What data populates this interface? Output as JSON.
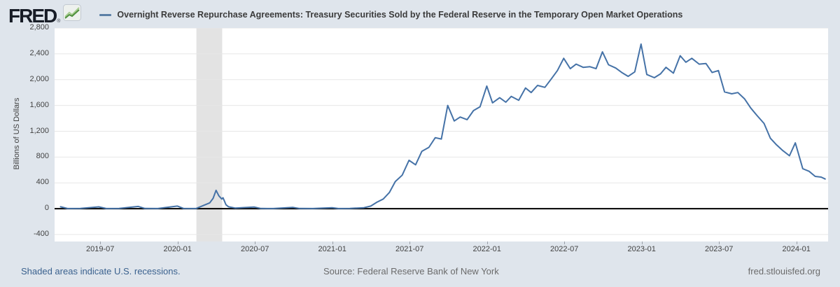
{
  "header": {
    "logo_text": "FRED",
    "logo_registered": "®",
    "legend_label": "Overnight Reverse Repurchase Agreements: Treasury Securities Sold by the Federal Reserve in the Temporary Open Market Operations"
  },
  "footer": {
    "recession_note": "Shaded areas indicate U.S. recessions.",
    "source": "Source: Federal Reserve Bank of New York",
    "site": "fred.stlouisfed.org"
  },
  "colors": {
    "page_background": "#dfe5ec",
    "plot_background": "#ffffff",
    "series_line": "#4572a7",
    "gridline": "#e7e7e7",
    "zero_line": "#000000",
    "recession_band": "#e3e3e3",
    "link_blue": "#3a618e"
  },
  "chart_data": {
    "type": "line",
    "title": "Overnight Reverse Repurchase Agreements: Treasury Securities Sold by the Federal Reserve in the Temporary Open Market Operations",
    "xlabel": "",
    "ylabel": "Billions of US Dollars",
    "ylim": [
      -400,
      2800
    ],
    "grid": true,
    "legend_position": "top",
    "x_domain": [
      "2019-03-15",
      "2024-03-15"
    ],
    "y_ticks": [
      {
        "value": 2800,
        "label": "2,800"
      },
      {
        "value": 2400,
        "label": "2,400"
      },
      {
        "value": 2000,
        "label": "2,000"
      },
      {
        "value": 1600,
        "label": "1,600"
      },
      {
        "value": 1200,
        "label": "1,200"
      },
      {
        "value": 800,
        "label": "800"
      },
      {
        "value": 400,
        "label": "400"
      },
      {
        "value": 0,
        "label": "0"
      },
      {
        "value": -400,
        "label": "-400"
      }
    ],
    "x_ticks": [
      {
        "date": "2019-07-01",
        "label": "2019-07"
      },
      {
        "date": "2020-01-01",
        "label": "2020-01"
      },
      {
        "date": "2020-07-01",
        "label": "2020-07"
      },
      {
        "date": "2021-01-01",
        "label": "2021-01"
      },
      {
        "date": "2021-07-01",
        "label": "2021-07"
      },
      {
        "date": "2022-01-01",
        "label": "2022-01"
      },
      {
        "date": "2022-07-01",
        "label": "2022-07"
      },
      {
        "date": "2023-01-01",
        "label": "2023-01"
      },
      {
        "date": "2023-07-01",
        "label": "2023-07"
      },
      {
        "date": "2024-01-01",
        "label": "2024-01"
      }
    ],
    "recession_bands": [
      {
        "start": "2020-02-15",
        "end": "2020-04-15"
      }
    ],
    "series": [
      {
        "name": "Overnight Reverse Repurchase Agreements: Treasury Securities Sold by the Federal Reserve in the Temporary Open Market Operations",
        "color": "#4572a7",
        "units": "Billions of US Dollars",
        "points": [
          [
            "2019-03-29",
            30
          ],
          [
            "2019-04-15",
            2
          ],
          [
            "2019-05-15",
            3
          ],
          [
            "2019-06-28",
            28
          ],
          [
            "2019-07-15",
            2
          ],
          [
            "2019-08-15",
            3
          ],
          [
            "2019-09-30",
            35
          ],
          [
            "2019-10-15",
            3
          ],
          [
            "2019-11-15",
            2
          ],
          [
            "2019-12-31",
            40
          ],
          [
            "2020-01-15",
            3
          ],
          [
            "2020-02-14",
            2
          ],
          [
            "2020-03-16",
            90
          ],
          [
            "2020-03-24",
            160
          ],
          [
            "2020-03-31",
            285
          ],
          [
            "2020-04-07",
            200
          ],
          [
            "2020-04-14",
            150
          ],
          [
            "2020-04-17",
            170
          ],
          [
            "2020-04-24",
            60
          ],
          [
            "2020-04-30",
            30
          ],
          [
            "2020-05-15",
            10
          ],
          [
            "2020-06-30",
            25
          ],
          [
            "2020-07-15",
            3
          ],
          [
            "2020-08-14",
            2
          ],
          [
            "2020-09-30",
            20
          ],
          [
            "2020-10-15",
            3
          ],
          [
            "2020-11-16",
            2
          ],
          [
            "2020-12-31",
            15
          ],
          [
            "2021-01-15",
            2
          ],
          [
            "2021-02-12",
            3
          ],
          [
            "2021-03-15",
            15
          ],
          [
            "2021-03-31",
            40
          ],
          [
            "2021-04-15",
            100
          ],
          [
            "2021-04-30",
            150
          ],
          [
            "2021-05-14",
            250
          ],
          [
            "2021-05-28",
            420
          ],
          [
            "2021-06-14",
            520
          ],
          [
            "2021-06-30",
            750
          ],
          [
            "2021-07-15",
            680
          ],
          [
            "2021-07-30",
            890
          ],
          [
            "2021-08-16",
            950
          ],
          [
            "2021-08-31",
            1100
          ],
          [
            "2021-09-15",
            1080
          ],
          [
            "2021-09-30",
            1600
          ],
          [
            "2021-10-15",
            1360
          ],
          [
            "2021-10-29",
            1420
          ],
          [
            "2021-11-15",
            1380
          ],
          [
            "2021-11-30",
            1520
          ],
          [
            "2021-12-15",
            1580
          ],
          [
            "2021-12-31",
            1900
          ],
          [
            "2022-01-14",
            1640
          ],
          [
            "2022-01-31",
            1720
          ],
          [
            "2022-02-15",
            1650
          ],
          [
            "2022-02-28",
            1740
          ],
          [
            "2022-03-15",
            1680
          ],
          [
            "2022-03-31",
            1870
          ],
          [
            "2022-04-14",
            1800
          ],
          [
            "2022-04-29",
            1910
          ],
          [
            "2022-05-16",
            1880
          ],
          [
            "2022-05-31",
            2010
          ],
          [
            "2022-06-15",
            2140
          ],
          [
            "2022-06-30",
            2330
          ],
          [
            "2022-07-15",
            2170
          ],
          [
            "2022-07-29",
            2240
          ],
          [
            "2022-08-15",
            2190
          ],
          [
            "2022-08-31",
            2200
          ],
          [
            "2022-09-15",
            2170
          ],
          [
            "2022-09-30",
            2430
          ],
          [
            "2022-10-14",
            2230
          ],
          [
            "2022-10-31",
            2180
          ],
          [
            "2022-11-15",
            2110
          ],
          [
            "2022-11-30",
            2050
          ],
          [
            "2022-12-15",
            2120
          ],
          [
            "2022-12-30",
            2550
          ],
          [
            "2023-01-13",
            2080
          ],
          [
            "2023-01-31",
            2030
          ],
          [
            "2023-02-15",
            2090
          ],
          [
            "2023-02-28",
            2190
          ],
          [
            "2023-03-15",
            2100
          ],
          [
            "2023-03-31",
            2370
          ],
          [
            "2023-04-14",
            2270
          ],
          [
            "2023-04-28",
            2330
          ],
          [
            "2023-05-15",
            2240
          ],
          [
            "2023-05-31",
            2250
          ],
          [
            "2023-06-15",
            2110
          ],
          [
            "2023-06-30",
            2140
          ],
          [
            "2023-07-14",
            1810
          ],
          [
            "2023-07-31",
            1780
          ],
          [
            "2023-08-15",
            1800
          ],
          [
            "2023-08-31",
            1700
          ],
          [
            "2023-09-15",
            1560
          ],
          [
            "2023-09-29",
            1450
          ],
          [
            "2023-10-16",
            1320
          ],
          [
            "2023-10-31",
            1090
          ],
          [
            "2023-11-15",
            990
          ],
          [
            "2023-11-30",
            900
          ],
          [
            "2023-12-15",
            820
          ],
          [
            "2023-12-29",
            1020
          ],
          [
            "2024-01-16",
            620
          ],
          [
            "2024-01-31",
            580
          ],
          [
            "2024-02-15",
            500
          ],
          [
            "2024-02-29",
            490
          ],
          [
            "2024-03-08",
            460
          ]
        ]
      }
    ]
  }
}
